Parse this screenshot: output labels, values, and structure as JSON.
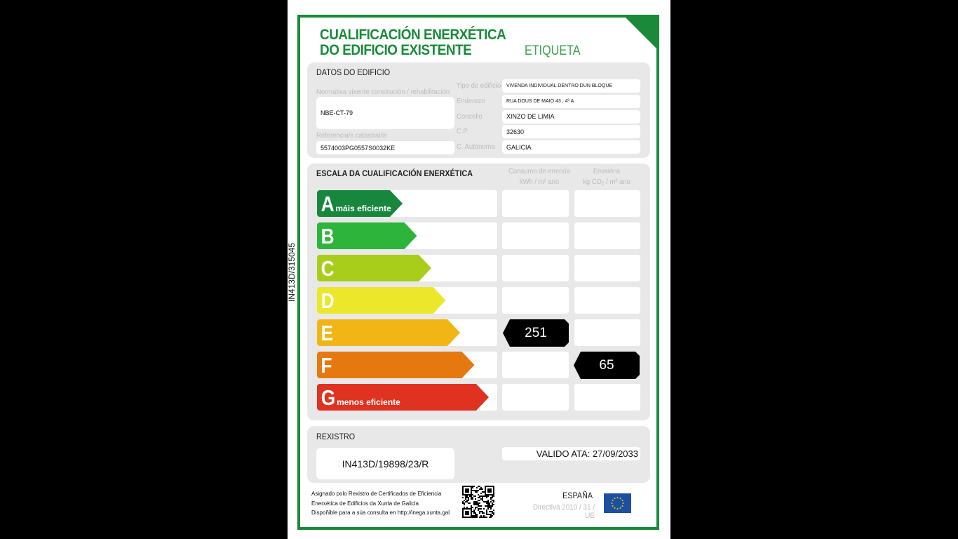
{
  "side_code": "IN413D/315045",
  "header": {
    "title_line1": "CUALIFICACIÓN ENERXÉTICA",
    "title_line2": "DO EDIFICIO EXISTENTE",
    "label": "ETIQUETA"
  },
  "datos": {
    "heading": "DATOS DO EDIFICIO",
    "normativa_label": "Normativa vixente construción / rehabilitación",
    "normativa": "NBE-CT-79",
    "referencia_label": "Referencia/s catastral/is",
    "referencia": "5574003PG0557S0032KE",
    "fields": [
      {
        "label": "Tipo de edificio",
        "value": "VIVENDA INDIVIDUAL DENTRO DUN BLOQUE"
      },
      {
        "label": "Enderezo",
        "value": "RUA DOUS DE MAIO 43 , 4º A"
      },
      {
        "label": "Concello",
        "value": "XINZO DE LIMIA"
      },
      {
        "label": "C.P.",
        "value": "32630"
      },
      {
        "label": "C. Autónoma",
        "value": "GALICIA"
      }
    ]
  },
  "escala": {
    "heading": "ESCALA DA CUALIFICACIÓN ENERXÉTICA",
    "col_energy": "Consumo de enerxía",
    "col_energy_unit": "kWh / m² ano",
    "col_emis": "Emisións",
    "col_emis_unit": "kg CO₂ / m² ano",
    "classes": [
      {
        "letter": "A",
        "sub": "máis eficiente",
        "color": "#17873d"
      },
      {
        "letter": "B",
        "sub": "",
        "color": "#2db43a"
      },
      {
        "letter": "C",
        "sub": "",
        "color": "#a9cd1b"
      },
      {
        "letter": "D",
        "sub": "",
        "color": "#ece72a"
      },
      {
        "letter": "E",
        "sub": "",
        "color": "#f1b516"
      },
      {
        "letter": "F",
        "sub": "",
        "color": "#e5790f"
      },
      {
        "letter": "G",
        "sub": "menos eficiente",
        "color": "#df3220"
      }
    ],
    "energy_rating": "E",
    "energy_value": "251",
    "emission_rating": "F",
    "emission_value": "65"
  },
  "rexistro": {
    "heading": "REXISTRO",
    "code": "IN413D/19898/23/R",
    "valid": "VALIDO ATA: 27/09/2033"
  },
  "footer": {
    "lines": [
      "Asignado polo Rexistro de Certificados de Eficiencia",
      "Enerxética de Edificios da Xunta de Galicia",
      "Dispoñible para a súa consulta en http://inega.xunta.gal"
    ],
    "country": "ESPAÑA",
    "directive": "Directiva 2010 / 31 / UE"
  }
}
